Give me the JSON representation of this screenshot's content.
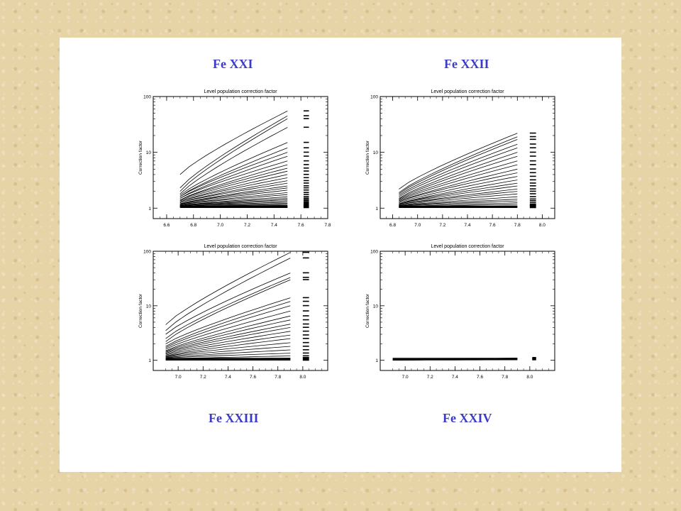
{
  "headings": {
    "top_left": "Fe XXI",
    "top_right": "Fe XXII",
    "bottom_left": "Fe XXIII",
    "bottom_right": "Fe XXIV"
  },
  "chart_data": [
    {
      "type": "line",
      "title": "Level population correction factor",
      "ylabel": "Correction factor",
      "xlabel": "",
      "yscale": "log",
      "ylim": [
        0.65,
        100
      ],
      "xlim": [
        6.5,
        7.8
      ],
      "yticks": [
        "1",
        "10",
        "100"
      ],
      "yticks_values": [
        1,
        10,
        100
      ],
      "xticks": [
        "6.6",
        "6.8",
        "7.0",
        "7.2",
        "7.4",
        "7.6",
        "7.8"
      ],
      "xticks_values": [
        6.6,
        6.8,
        7.0,
        7.2,
        7.4,
        7.6,
        7.8
      ],
      "x_range": [
        6.7,
        7.5
      ],
      "label_column_x": [
        7.62,
        7.66
      ],
      "grid": false,
      "series": [
        {
          "start": 4.0,
          "end": 55
        },
        {
          "start": 2.3,
          "end": 45
        },
        {
          "start": 2.0,
          "end": 40
        },
        {
          "start": 1.8,
          "end": 28
        },
        {
          "start": 1.7,
          "end": 15
        },
        {
          "start": 1.6,
          "end": 12
        },
        {
          "start": 1.6,
          "end": 10
        },
        {
          "start": 1.5,
          "end": 8.5
        },
        {
          "start": 1.5,
          "end": 7.0
        },
        {
          "start": 1.4,
          "end": 6.0
        },
        {
          "start": 1.4,
          "end": 5.2
        },
        {
          "start": 1.35,
          "end": 4.6
        },
        {
          "start": 1.3,
          "end": 4.0
        },
        {
          "start": 1.3,
          "end": 3.5
        },
        {
          "start": 1.25,
          "end": 3.1
        },
        {
          "start": 1.25,
          "end": 2.8
        },
        {
          "start": 1.2,
          "end": 2.5
        },
        {
          "start": 1.2,
          "end": 2.3
        },
        {
          "start": 1.18,
          "end": 2.1
        },
        {
          "start": 1.15,
          "end": 1.9
        },
        {
          "start": 1.15,
          "end": 1.75
        },
        {
          "start": 1.12,
          "end": 1.6
        },
        {
          "start": 1.12,
          "end": 1.5
        },
        {
          "start": 1.1,
          "end": 1.42
        },
        {
          "start": 1.1,
          "end": 1.35
        },
        {
          "start": 1.08,
          "end": 1.28
        },
        {
          "start": 1.08,
          "end": 1.22
        },
        {
          "start": 1.06,
          "end": 1.17
        },
        {
          "start": 1.06,
          "end": 1.13
        },
        {
          "start": 1.05,
          "end": 1.1
        },
        {
          "start": 1.05,
          "end": 1.07
        },
        {
          "start": 1.04,
          "end": 1.05
        }
      ]
    },
    {
      "type": "line",
      "title": "Level population correction factor",
      "ylabel": "Correction factor",
      "xlabel": "",
      "yscale": "log",
      "ylim": [
        0.65,
        100
      ],
      "xlim": [
        6.7,
        8.1
      ],
      "yticks": [
        "1",
        "10",
        "100"
      ],
      "yticks_values": [
        1,
        10,
        100
      ],
      "xticks": [
        "6.8",
        "7.0",
        "7.2",
        "7.4",
        "7.6",
        "7.8",
        "8.0"
      ],
      "xticks_values": [
        6.8,
        7.0,
        7.2,
        7.4,
        7.6,
        7.8,
        8.0
      ],
      "x_range": [
        6.85,
        7.8
      ],
      "label_column_x": [
        7.9,
        7.95
      ],
      "grid": false,
      "series": [
        {
          "start": 2.2,
          "end": 22
        },
        {
          "start": 1.9,
          "end": 19
        },
        {
          "start": 1.8,
          "end": 17
        },
        {
          "start": 1.7,
          "end": 14
        },
        {
          "start": 1.6,
          "end": 12
        },
        {
          "start": 1.5,
          "end": 10
        },
        {
          "start": 1.45,
          "end": 8.5
        },
        {
          "start": 1.4,
          "end": 7.0
        },
        {
          "start": 1.35,
          "end": 6.0
        },
        {
          "start": 1.3,
          "end": 5.0
        },
        {
          "start": 1.3,
          "end": 4.3
        },
        {
          "start": 1.25,
          "end": 3.7
        },
        {
          "start": 1.2,
          "end": 3.2
        },
        {
          "start": 1.2,
          "end": 2.8
        },
        {
          "start": 1.18,
          "end": 2.5
        },
        {
          "start": 1.15,
          "end": 2.2
        },
        {
          "start": 1.15,
          "end": 2.0
        },
        {
          "start": 1.12,
          "end": 1.8
        },
        {
          "start": 1.1,
          "end": 1.6
        },
        {
          "start": 1.1,
          "end": 1.45
        },
        {
          "start": 1.08,
          "end": 1.35
        },
        {
          "start": 1.06,
          "end": 1.25
        },
        {
          "start": 1.05,
          "end": 1.17
        },
        {
          "start": 1.04,
          "end": 1.1
        }
      ]
    },
    {
      "type": "line",
      "title": "Level population correction factor",
      "ylabel": "Correction factor",
      "xlabel": "",
      "yscale": "log",
      "ylim": [
        0.65,
        100
      ],
      "xlim": [
        6.8,
        8.2
      ],
      "yticks": [
        "1",
        "10",
        "100"
      ],
      "yticks_values": [
        1,
        10,
        100
      ],
      "xticks": [
        "7.0",
        "7.2",
        "7.4",
        "7.6",
        "7.8",
        "8.0"
      ],
      "xticks_values": [
        7.0,
        7.2,
        7.4,
        7.6,
        7.8,
        8.0
      ],
      "x_range": [
        6.9,
        7.9
      ],
      "label_column_x": [
        8.0,
        8.05
      ],
      "grid": false,
      "series": [
        {
          "start": 4.5,
          "end": 95
        },
        {
          "start": 3.5,
          "end": 75
        },
        {
          "start": 3.0,
          "end": 40
        },
        {
          "start": 2.5,
          "end": 33
        },
        {
          "start": 2.2,
          "end": 30
        },
        {
          "start": 2.0,
          "end": 14
        },
        {
          "start": 1.8,
          "end": 12
        },
        {
          "start": 1.7,
          "end": 10
        },
        {
          "start": 1.6,
          "end": 8
        },
        {
          "start": 1.5,
          "end": 6.5
        },
        {
          "start": 1.45,
          "end": 5.5
        },
        {
          "start": 1.4,
          "end": 4.6
        },
        {
          "start": 1.35,
          "end": 4.0
        },
        {
          "start": 1.3,
          "end": 3.4
        },
        {
          "start": 1.25,
          "end": 2.9
        },
        {
          "start": 1.2,
          "end": 2.5
        },
        {
          "start": 1.18,
          "end": 2.1
        },
        {
          "start": 1.15,
          "end": 1.8
        },
        {
          "start": 1.12,
          "end": 1.55
        },
        {
          "start": 1.1,
          "end": 1.35
        },
        {
          "start": 1.06,
          "end": 1.2
        },
        {
          "start": 1.04,
          "end": 1.1
        },
        {
          "start": 1.0,
          "end": 1.0
        }
      ]
    },
    {
      "type": "line",
      "title": "Level population correction factor",
      "ylabel": "Correction factor",
      "xlabel": "",
      "yscale": "log",
      "ylim": [
        0.65,
        100
      ],
      "xlim": [
        6.8,
        8.2
      ],
      "yticks": [
        "1",
        "10",
        "100"
      ],
      "yticks_values": [
        1,
        10,
        100
      ],
      "xticks": [
        "7.0",
        "7.2",
        "7.4",
        "7.6",
        "7.8",
        "8.0"
      ],
      "xticks_values": [
        7.0,
        7.2,
        7.4,
        7.6,
        7.8,
        8.0
      ],
      "x_range": [
        6.9,
        7.9
      ],
      "label_column_x": [
        8.02,
        8.05
      ],
      "grid": false,
      "series": [
        {
          "start": 1.0,
          "end": 1.1
        },
        {
          "start": 1.0,
          "end": 1.07
        },
        {
          "start": 1.0,
          "end": 1.05
        },
        {
          "start": 1.0,
          "end": 1.02
        }
      ]
    }
  ]
}
